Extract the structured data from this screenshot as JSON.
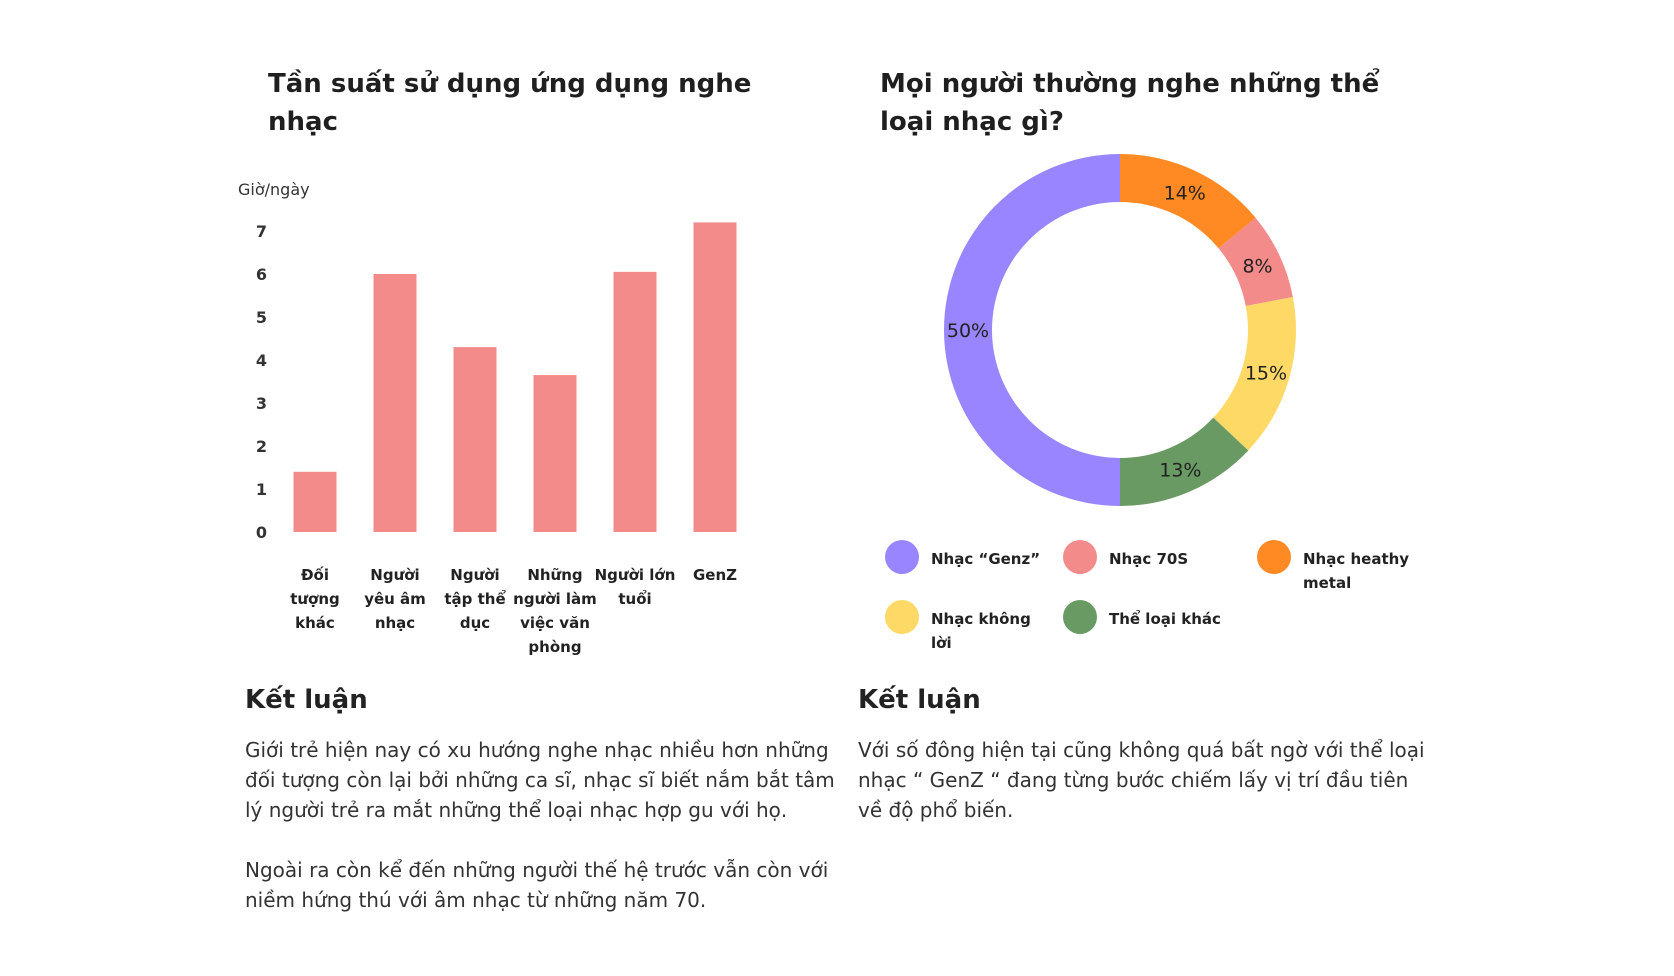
{
  "chart_data": [
    {
      "type": "bar",
      "title": "Tần suất sử dụng ứng dụng nghe nhạc",
      "ylabel": "Giờ/ngày",
      "ylim": [
        0,
        7
      ],
      "yticks": [
        "0",
        "1",
        "2",
        "3",
        "4",
        "5",
        "6",
        "7"
      ],
      "categories": [
        "Đối tượng khác",
        "Người yêu âm nhạc",
        "Người tập thể dục",
        "Những người làm việc văn phòng",
        "Người lớn tuổi",
        "GenZ"
      ],
      "category_lines": [
        [
          "Đối",
          "tượng",
          "khác"
        ],
        [
          "Người",
          "yêu âm",
          "nhạc"
        ],
        [
          "Người",
          "tập thể",
          "dục"
        ],
        [
          "Những",
          "người làm",
          "việc văn",
          "phòng"
        ],
        [
          "Người lớn",
          "tuổi"
        ],
        [
          "GenZ"
        ]
      ],
      "values": [
        1.4,
        6.0,
        4.3,
        3.65,
        6.05,
        7.2
      ],
      "color": "#F48B8B",
      "grid": false
    },
    {
      "type": "pie",
      "donut": true,
      "title": "Mọi người thường nghe những thể loại nhạc gì?",
      "slices": [
        {
          "label": "Nhạc heathy metal",
          "value": 14,
          "display": "14%",
          "color": "#FF8A24"
        },
        {
          "label": "Nhạc 70S",
          "value": 8,
          "display": "8%",
          "color": "#F48B8B"
        },
        {
          "label": "Nhạc không lời",
          "value": 15,
          "display": "15%",
          "color": "#FFD966"
        },
        {
          "label": "Thể loại khác",
          "value": 13,
          "display": "13%",
          "color": "#6A9A63"
        },
        {
          "label": "Nhạc “Genz”",
          "value": 50,
          "display": "50%",
          "color": "#9985FF"
        }
      ],
      "legend": [
        {
          "label": "Nhạc “Genz”",
          "color": "#9985FF"
        },
        {
          "label": "Nhạc 70S",
          "color": "#F48B8B"
        },
        {
          "label": "Nhạc heathy metal",
          "color": "#FF8A24"
        },
        {
          "label": "Nhạc không lời",
          "color": "#FFD966"
        },
        {
          "label": "Thể loại khác",
          "color": "#6A9A63"
        }
      ],
      "legend_placement": "bottom"
    }
  ],
  "conclusions": {
    "left": {
      "title": "Kết luận",
      "p1": "Giới trẻ hiện nay có xu hướng nghe nhạc nhiều hơn những đối tượng còn lại bởi những ca sĩ, nhạc sĩ biết nắm bắt tâm lý người trẻ ra mắt những thể loại nhạc hợp gu với họ.",
      "p2": "Ngoài ra còn kể đến những người thế hệ trước vẫn còn với niềm hứng thú với âm nhạc từ những năm 70."
    },
    "right": {
      "title": "Kết luận",
      "p1": "Với số đông hiện tại cũng không quá bất ngờ với thể loại nhạc “ GenZ “ đang từng bước chiếm lấy vị trí đầu tiên về độ phổ biến."
    }
  }
}
